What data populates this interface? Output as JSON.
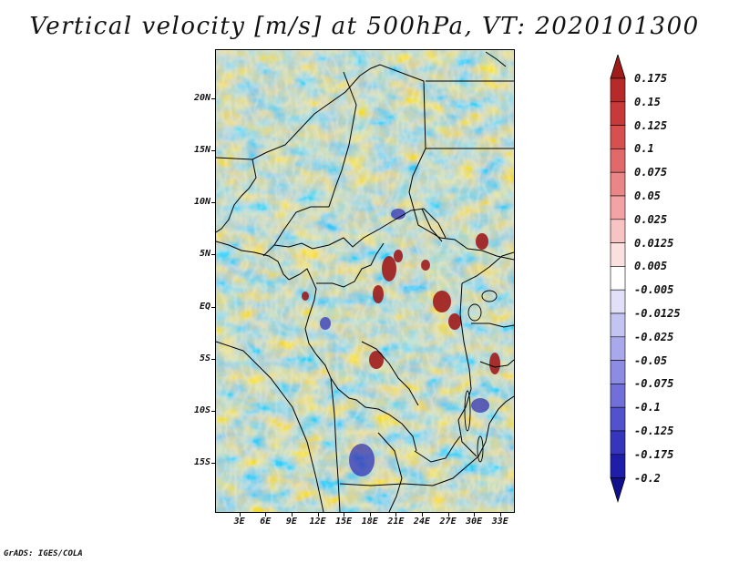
{
  "title": "Vertical velocity [m/s] at 500hPa, VT: 2020101300",
  "credit": "GrADS: IGES/COLA",
  "map": {
    "lat_labels": [
      "20N",
      "15N",
      "10N",
      "5N",
      "EQ",
      "5S",
      "10S",
      "15S"
    ],
    "lat_values": [
      20,
      15,
      10,
      5,
      0,
      -5,
      -10,
      -15
    ],
    "lon_labels": [
      "3E",
      "6E",
      "9E",
      "12E",
      "15E",
      "18E",
      "21E",
      "24E",
      "27E",
      "30E",
      "33E"
    ],
    "lon_values": [
      3,
      6,
      9,
      12,
      15,
      18,
      21,
      24,
      27,
      30,
      33
    ],
    "lon_range": [
      0.2,
      34.7
    ],
    "lat_range": [
      -19.8,
      24.7
    ]
  },
  "colorbar": {
    "levels": [
      "0.175",
      "0.15",
      "0.125",
      "0.1",
      "0.075",
      "0.05",
      "0.025",
      "0.0125",
      "0.005",
      "-0.005",
      "-0.0125",
      "-0.025",
      "-0.05",
      "-0.075",
      "-0.1",
      "-0.125",
      "-0.175",
      "-0.2"
    ],
    "colors": [
      "#a01c1c",
      "#b62a2a",
      "#c83a3a",
      "#d75050",
      "#e06a6a",
      "#ea8686",
      "#f2a4a4",
      "#f7c3c3",
      "#fbe0e0",
      "#ffffff",
      "#e0e0f8",
      "#c4c4f2",
      "#a8a8ea",
      "#8c8ce2",
      "#7070d8",
      "#5252cc",
      "#3636bc",
      "#1e1ea8",
      "#10108f"
    ]
  }
}
